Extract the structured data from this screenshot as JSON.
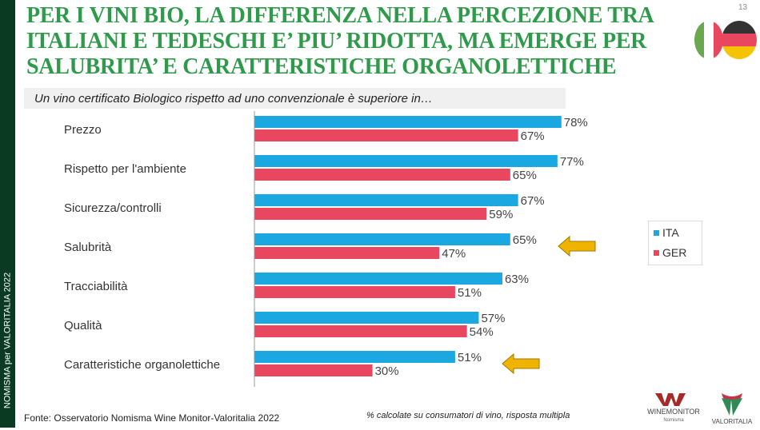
{
  "sidebar_text": "NOMISMA per VALORITALIA 2022",
  "title": "PER I VINI BIO, LA DIFFERENZA NELLA PERCEZIONE TRA ITALIANI E TEDESCHI E’ PIU’ RIDOTTA, MA EMERGE PER SALUBRITA’ E CARATTERISTICHE ORGANOLETTICHE",
  "page_number": "13",
  "source": "Fonte: Osservatorio Nomisma Wine Monitor-Valoritalia 2022",
  "note": "% calcolate su consumatori di vino, risposta multipla",
  "logos": {
    "winemonitor": "WINEMONITOR Nomisma",
    "valoritalia": "VALORITALIA"
  },
  "chart_data": {
    "type": "bar",
    "orientation": "horizontal",
    "subtitle": "Un vino certificato Biologico rispetto ad uno convenzionale è superiore in…",
    "categories": [
      "Prezzo",
      "Rispetto per l'ambiente",
      "Sicurezza/controlli",
      "Salubrità",
      "Tracciabilità",
      "Qualità",
      "Caratteristiche organolettiche"
    ],
    "series": [
      {
        "name": "ITA",
        "color": "#1ba8e0",
        "values": [
          78,
          77,
          67,
          65,
          63,
          57,
          51
        ]
      },
      {
        "name": "GER",
        "color": "#e8475f",
        "values": [
          67,
          65,
          59,
          47,
          51,
          54,
          30
        ]
      }
    ],
    "value_suffix": "%",
    "xlim": [
      0,
      100
    ],
    "grid": false,
    "legend": "right",
    "highlighted_categories": [
      "Salubrità",
      "Caratteristiche organolettiche"
    ],
    "arrow_color": "#f0b400"
  }
}
